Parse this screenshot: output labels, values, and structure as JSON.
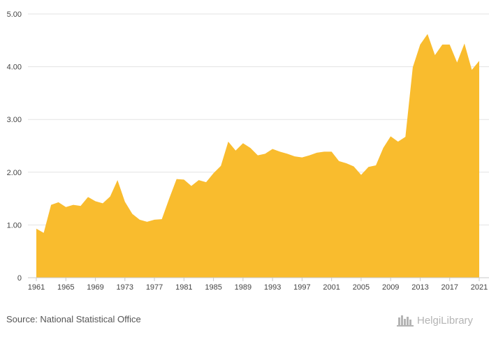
{
  "chart_data": {
    "type": "area",
    "title": "",
    "xlabel": "",
    "ylabel": "",
    "ylim": [
      0,
      5
    ],
    "xlim": [
      1961,
      2021
    ],
    "grid": true,
    "y_ticks": [
      {
        "value": 0,
        "label": "0"
      },
      {
        "value": 1,
        "label": "1.00"
      },
      {
        "value": 2,
        "label": "2.00"
      },
      {
        "value": 3,
        "label": "3.00"
      },
      {
        "value": 4,
        "label": "4.00"
      },
      {
        "value": 5,
        "label": "5.00"
      }
    ],
    "x_ticks": [
      {
        "value": 1961,
        "label": "1961"
      },
      {
        "value": 1965,
        "label": "1965"
      },
      {
        "value": 1969,
        "label": "1969"
      },
      {
        "value": 1973,
        "label": "1973"
      },
      {
        "value": 1977,
        "label": "1977"
      },
      {
        "value": 1981,
        "label": "1981"
      },
      {
        "value": 1985,
        "label": "1985"
      },
      {
        "value": 1989,
        "label": "1989"
      },
      {
        "value": 1993,
        "label": "1993"
      },
      {
        "value": 1997,
        "label": "1997"
      },
      {
        "value": 2001,
        "label": "2001"
      },
      {
        "value": 2005,
        "label": "2005"
      },
      {
        "value": 2009,
        "label": "2009"
      },
      {
        "value": 2013,
        "label": "2013"
      },
      {
        "value": 2017,
        "label": "2017"
      },
      {
        "value": 2021,
        "label": "2021"
      }
    ],
    "series": [
      {
        "name": "Value",
        "color": "#f9bc2e",
        "x": [
          1961,
          1962,
          1963,
          1964,
          1965,
          1966,
          1967,
          1968,
          1969,
          1970,
          1971,
          1972,
          1973,
          1974,
          1975,
          1976,
          1977,
          1978,
          1979,
          1980,
          1981,
          1982,
          1983,
          1984,
          1985,
          1986,
          1987,
          1988,
          1989,
          1990,
          1991,
          1992,
          1993,
          1994,
          1995,
          1996,
          1997,
          1998,
          1999,
          2000,
          2001,
          2002,
          2003,
          2004,
          2005,
          2006,
          2007,
          2008,
          2009,
          2010,
          2011,
          2012,
          2013,
          2014,
          2015,
          2016,
          2017,
          2018,
          2019,
          2020,
          2021
        ],
        "values": [
          0.93,
          0.85,
          1.38,
          1.43,
          1.34,
          1.38,
          1.36,
          1.53,
          1.45,
          1.41,
          1.54,
          1.85,
          1.44,
          1.21,
          1.1,
          1.06,
          1.1,
          1.11,
          1.5,
          1.87,
          1.86,
          1.74,
          1.85,
          1.81,
          1.98,
          2.12,
          2.58,
          2.41,
          2.55,
          2.46,
          2.32,
          2.35,
          2.44,
          2.39,
          2.35,
          2.3,
          2.28,
          2.32,
          2.37,
          2.39,
          2.39,
          2.21,
          2.17,
          2.11,
          1.95,
          2.1,
          2.13,
          2.46,
          2.68,
          2.58,
          2.67,
          3.99,
          4.42,
          4.62,
          4.22,
          4.42,
          4.42,
          4.08,
          4.44,
          3.94,
          4.11
        ]
      }
    ]
  },
  "footer": {
    "source_text": "Source: National Statistical Office",
    "brand_text": "HelgiLibrary"
  },
  "colors": {
    "area": "#f9bc2e",
    "grid": "#e3e3e3",
    "axis": "#c8c8c8",
    "brand": "#b4b4b4"
  }
}
